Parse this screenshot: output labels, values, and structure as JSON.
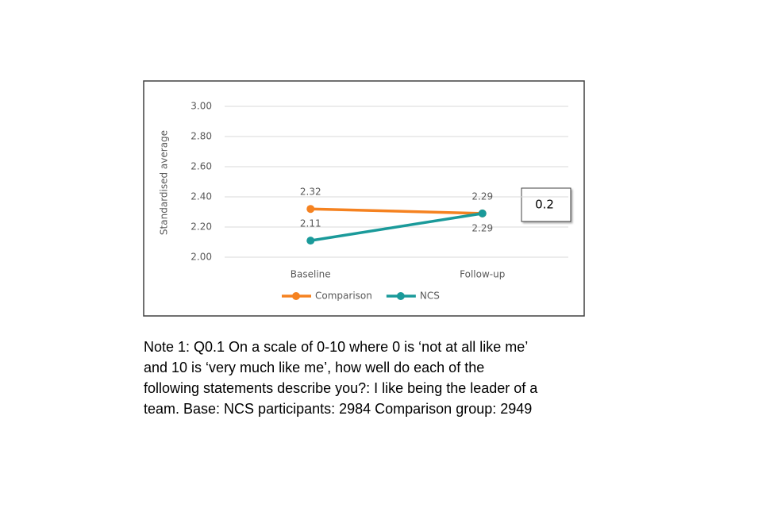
{
  "chart_data": {
    "type": "line",
    "y_label": "Standardised average",
    "categories": [
      "Baseline",
      "Follow-up"
    ],
    "series": [
      {
        "name": "Comparison",
        "color": "#f58220",
        "values": [
          2.32,
          2.29
        ]
      },
      {
        "name": "NCS",
        "color": "#1a9a9a",
        "values": [
          2.11,
          2.29
        ]
      }
    ],
    "ylim": [
      2.0,
      3.0
    ],
    "yticks": [
      {
        "value": 2.0,
        "label": "2.00"
      },
      {
        "value": 2.2,
        "label": "2.20"
      },
      {
        "value": 2.4,
        "label": "2.40"
      },
      {
        "value": 2.6,
        "label": "2.60"
      },
      {
        "value": 2.8,
        "label": "2.80"
      },
      {
        "value": 3.0,
        "label": "3.00"
      }
    ],
    "grid": true,
    "legend": "bottom",
    "annotation": "0.2"
  },
  "note": [
    "Note 1: Q0.1 On a scale of 0-10 where 0 is ‘not at all like me’",
    "and 10 is ‘very much like me’, how well do each of the",
    "following statements describe you?: I like being the leader of a",
    "team. Base: NCS participants: 2984 Comparison group: 2949"
  ]
}
